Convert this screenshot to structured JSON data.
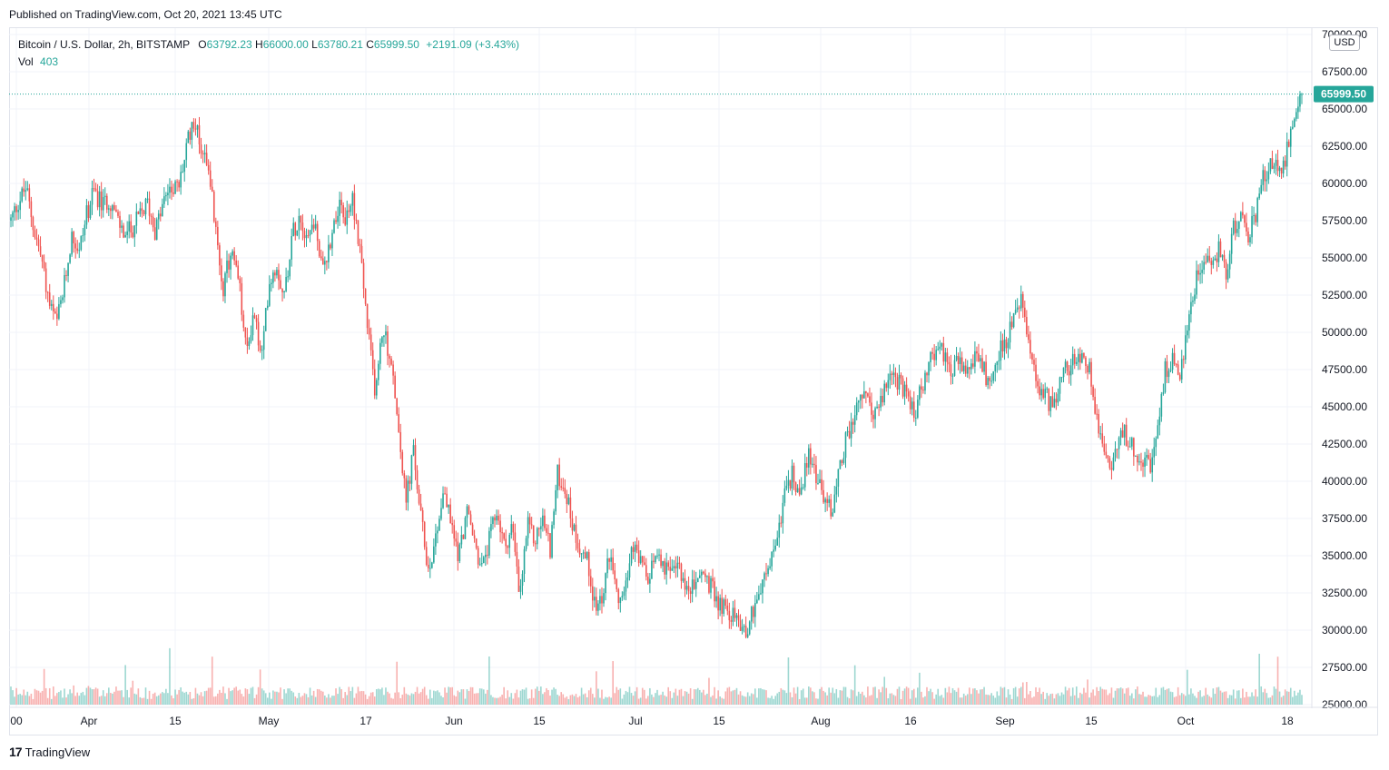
{
  "header": {
    "published": "Published on TradingView.com, Oct 20, 2021 13:45 UTC"
  },
  "legend": {
    "symbol": "Bitcoin / U.S. Dollar, 2h, BITSTAMP",
    "open_label": "O",
    "open": "63792.23",
    "high_label": "H",
    "high": "66000.00",
    "low_label": "L",
    "low": "63780.21",
    "close_label": "C",
    "close": "65999.50",
    "change": "+2191.09 (+3.43%)",
    "vol_label": "Vol",
    "vol": "403"
  },
  "axis": {
    "currency": "USD"
  },
  "footer": {
    "brand": "TradingView",
    "logo_icon": "tradingview-logo-icon"
  },
  "colors": {
    "up": "#26a69a",
    "down": "#ef5350",
    "grid": "#f0f3fa",
    "text": "#131722"
  },
  "chart_data": {
    "type": "candlestick",
    "ylim": [
      25000,
      70000
    ],
    "y_ticks": [
      "70000.00",
      "67500.00",
      "65000.00",
      "62500.00",
      "60000.00",
      "57500.00",
      "55000.00",
      "52500.00",
      "50000.00",
      "47500.00",
      "45000.00",
      "42500.00",
      "40000.00",
      "37500.00",
      "35000.00",
      "32500.00",
      "30000.00",
      "27500.00",
      "25000.00"
    ],
    "x_ticks": [
      "00",
      "Apr",
      "15",
      "May",
      "17",
      "Jun",
      "15",
      "Jul",
      "15",
      "Aug",
      "16",
      "Sep",
      "15",
      "Oct",
      "18"
    ],
    "last_price": "65999.50",
    "price_path": [
      [
        0,
        57500
      ],
      [
        1,
        58800
      ],
      [
        2,
        59700
      ],
      [
        3,
        57000
      ],
      [
        4,
        55000
      ],
      [
        5,
        52000
      ],
      [
        6,
        50500
      ],
      [
        7,
        53000
      ],
      [
        8,
        56500
      ],
      [
        9,
        55500
      ],
      [
        10,
        58000
      ],
      [
        11,
        59500
      ],
      [
        12,
        58500
      ],
      [
        13,
        59000
      ],
      [
        14,
        57500
      ],
      [
        15,
        56500
      ],
      [
        16,
        57000
      ],
      [
        17,
        57800
      ],
      [
        18,
        58700
      ],
      [
        19,
        56800
      ],
      [
        20,
        58500
      ],
      [
        21,
        60000
      ],
      [
        22,
        59500
      ],
      [
        23,
        62000
      ],
      [
        24,
        64500
      ],
      [
        25,
        62500
      ],
      [
        26,
        61500
      ],
      [
        27,
        56500
      ],
      [
        28,
        53000
      ],
      [
        29,
        55500
      ],
      [
        30,
        53500
      ],
      [
        31,
        48500
      ],
      [
        32,
        51500
      ],
      [
        33,
        48000
      ],
      [
        34,
        53500
      ],
      [
        35,
        54500
      ],
      [
        36,
        52500
      ],
      [
        37,
        56500
      ],
      [
        38,
        58000
      ],
      [
        39,
        56500
      ],
      [
        40,
        57500
      ],
      [
        41,
        54000
      ],
      [
        42,
        56000
      ],
      [
        43,
        58500
      ],
      [
        44,
        57500
      ],
      [
        45,
        59000
      ],
      [
        46,
        55500
      ],
      [
        47,
        50000
      ],
      [
        48,
        46000
      ],
      [
        49,
        50500
      ],
      [
        50,
        48000
      ],
      [
        51,
        44000
      ],
      [
        52,
        38500
      ],
      [
        53,
        42000
      ],
      [
        54,
        37500
      ],
      [
        55,
        34000
      ],
      [
        56,
        36500
      ],
      [
        57,
        39500
      ],
      [
        58,
        37000
      ],
      [
        59,
        35000
      ],
      [
        60,
        38000
      ],
      [
        61,
        36000
      ],
      [
        62,
        34000
      ],
      [
        63,
        36000
      ],
      [
        64,
        38000
      ],
      [
        65,
        35500
      ],
      [
        66,
        37000
      ],
      [
        67,
        32000
      ],
      [
        68,
        37000
      ],
      [
        69,
        36000
      ],
      [
        70,
        37500
      ],
      [
        71,
        35500
      ],
      [
        72,
        40500
      ],
      [
        73,
        39500
      ],
      [
        74,
        37000
      ],
      [
        75,
        35500
      ],
      [
        76,
        34500
      ],
      [
        77,
        31500
      ],
      [
        78,
        32500
      ],
      [
        79,
        35500
      ],
      [
        80,
        32500
      ],
      [
        81,
        33500
      ],
      [
        82,
        35500
      ],
      [
        83,
        34500
      ],
      [
        84,
        33000
      ],
      [
        85,
        35500
      ],
      [
        86,
        34500
      ],
      [
        87,
        33500
      ],
      [
        88,
        34500
      ],
      [
        89,
        32500
      ],
      [
        90,
        33000
      ],
      [
        91,
        34000
      ],
      [
        92,
        33000
      ],
      [
        93,
        32000
      ],
      [
        94,
        31500
      ],
      [
        95,
        31000
      ],
      [
        96,
        30500
      ],
      [
        97,
        30000
      ],
      [
        98,
        32000
      ],
      [
        99,
        33000
      ],
      [
        100,
        34500
      ],
      [
        101,
        36500
      ],
      [
        102,
        39500
      ],
      [
        103,
        40500
      ],
      [
        104,
        39000
      ],
      [
        105,
        42000
      ],
      [
        106,
        40500
      ],
      [
        107,
        39000
      ],
      [
        108,
        38000
      ],
      [
        109,
        40500
      ],
      [
        110,
        43000
      ],
      [
        111,
        44000
      ],
      [
        112,
        46000
      ],
      [
        113,
        45000
      ],
      [
        114,
        44500
      ],
      [
        115,
        46000
      ],
      [
        116,
        47500
      ],
      [
        117,
        46500
      ],
      [
        118,
        45500
      ],
      [
        119,
        44500
      ],
      [
        120,
        46500
      ],
      [
        121,
        48000
      ],
      [
        122,
        49000
      ],
      [
        123,
        48500
      ],
      [
        124,
        47500
      ],
      [
        125,
        48000
      ],
      [
        126,
        47000
      ],
      [
        127,
        48500
      ],
      [
        128,
        47500
      ],
      [
        129,
        46500
      ],
      [
        130,
        48500
      ],
      [
        131,
        49500
      ],
      [
        132,
        50500
      ],
      [
        133,
        52500
      ],
      [
        134,
        49000
      ],
      [
        135,
        46500
      ],
      [
        136,
        46000
      ],
      [
        137,
        45000
      ],
      [
        138,
        46500
      ],
      [
        139,
        47500
      ],
      [
        140,
        48000
      ],
      [
        141,
        48500
      ],
      [
        142,
        47500
      ],
      [
        143,
        44500
      ],
      [
        144,
        42000
      ],
      [
        145,
        41000
      ],
      [
        146,
        43500
      ],
      [
        147,
        43000
      ],
      [
        148,
        42000
      ],
      [
        149,
        41500
      ],
      [
        150,
        41000
      ],
      [
        151,
        43000
      ],
      [
        152,
        47500
      ],
      [
        153,
        48000
      ],
      [
        154,
        47500
      ],
      [
        155,
        50500
      ],
      [
        156,
        53500
      ],
      [
        157,
        55000
      ],
      [
        158,
        54500
      ],
      [
        159,
        55500
      ],
      [
        160,
        54000
      ],
      [
        161,
        57000
      ],
      [
        162,
        57500
      ],
      [
        163,
        56500
      ],
      [
        164,
        58000
      ],
      [
        165,
        60500
      ],
      [
        166,
        61500
      ],
      [
        167,
        60500
      ],
      [
        168,
        62000
      ],
      [
        169,
        64000
      ],
      [
        170,
        66000
      ]
    ]
  }
}
